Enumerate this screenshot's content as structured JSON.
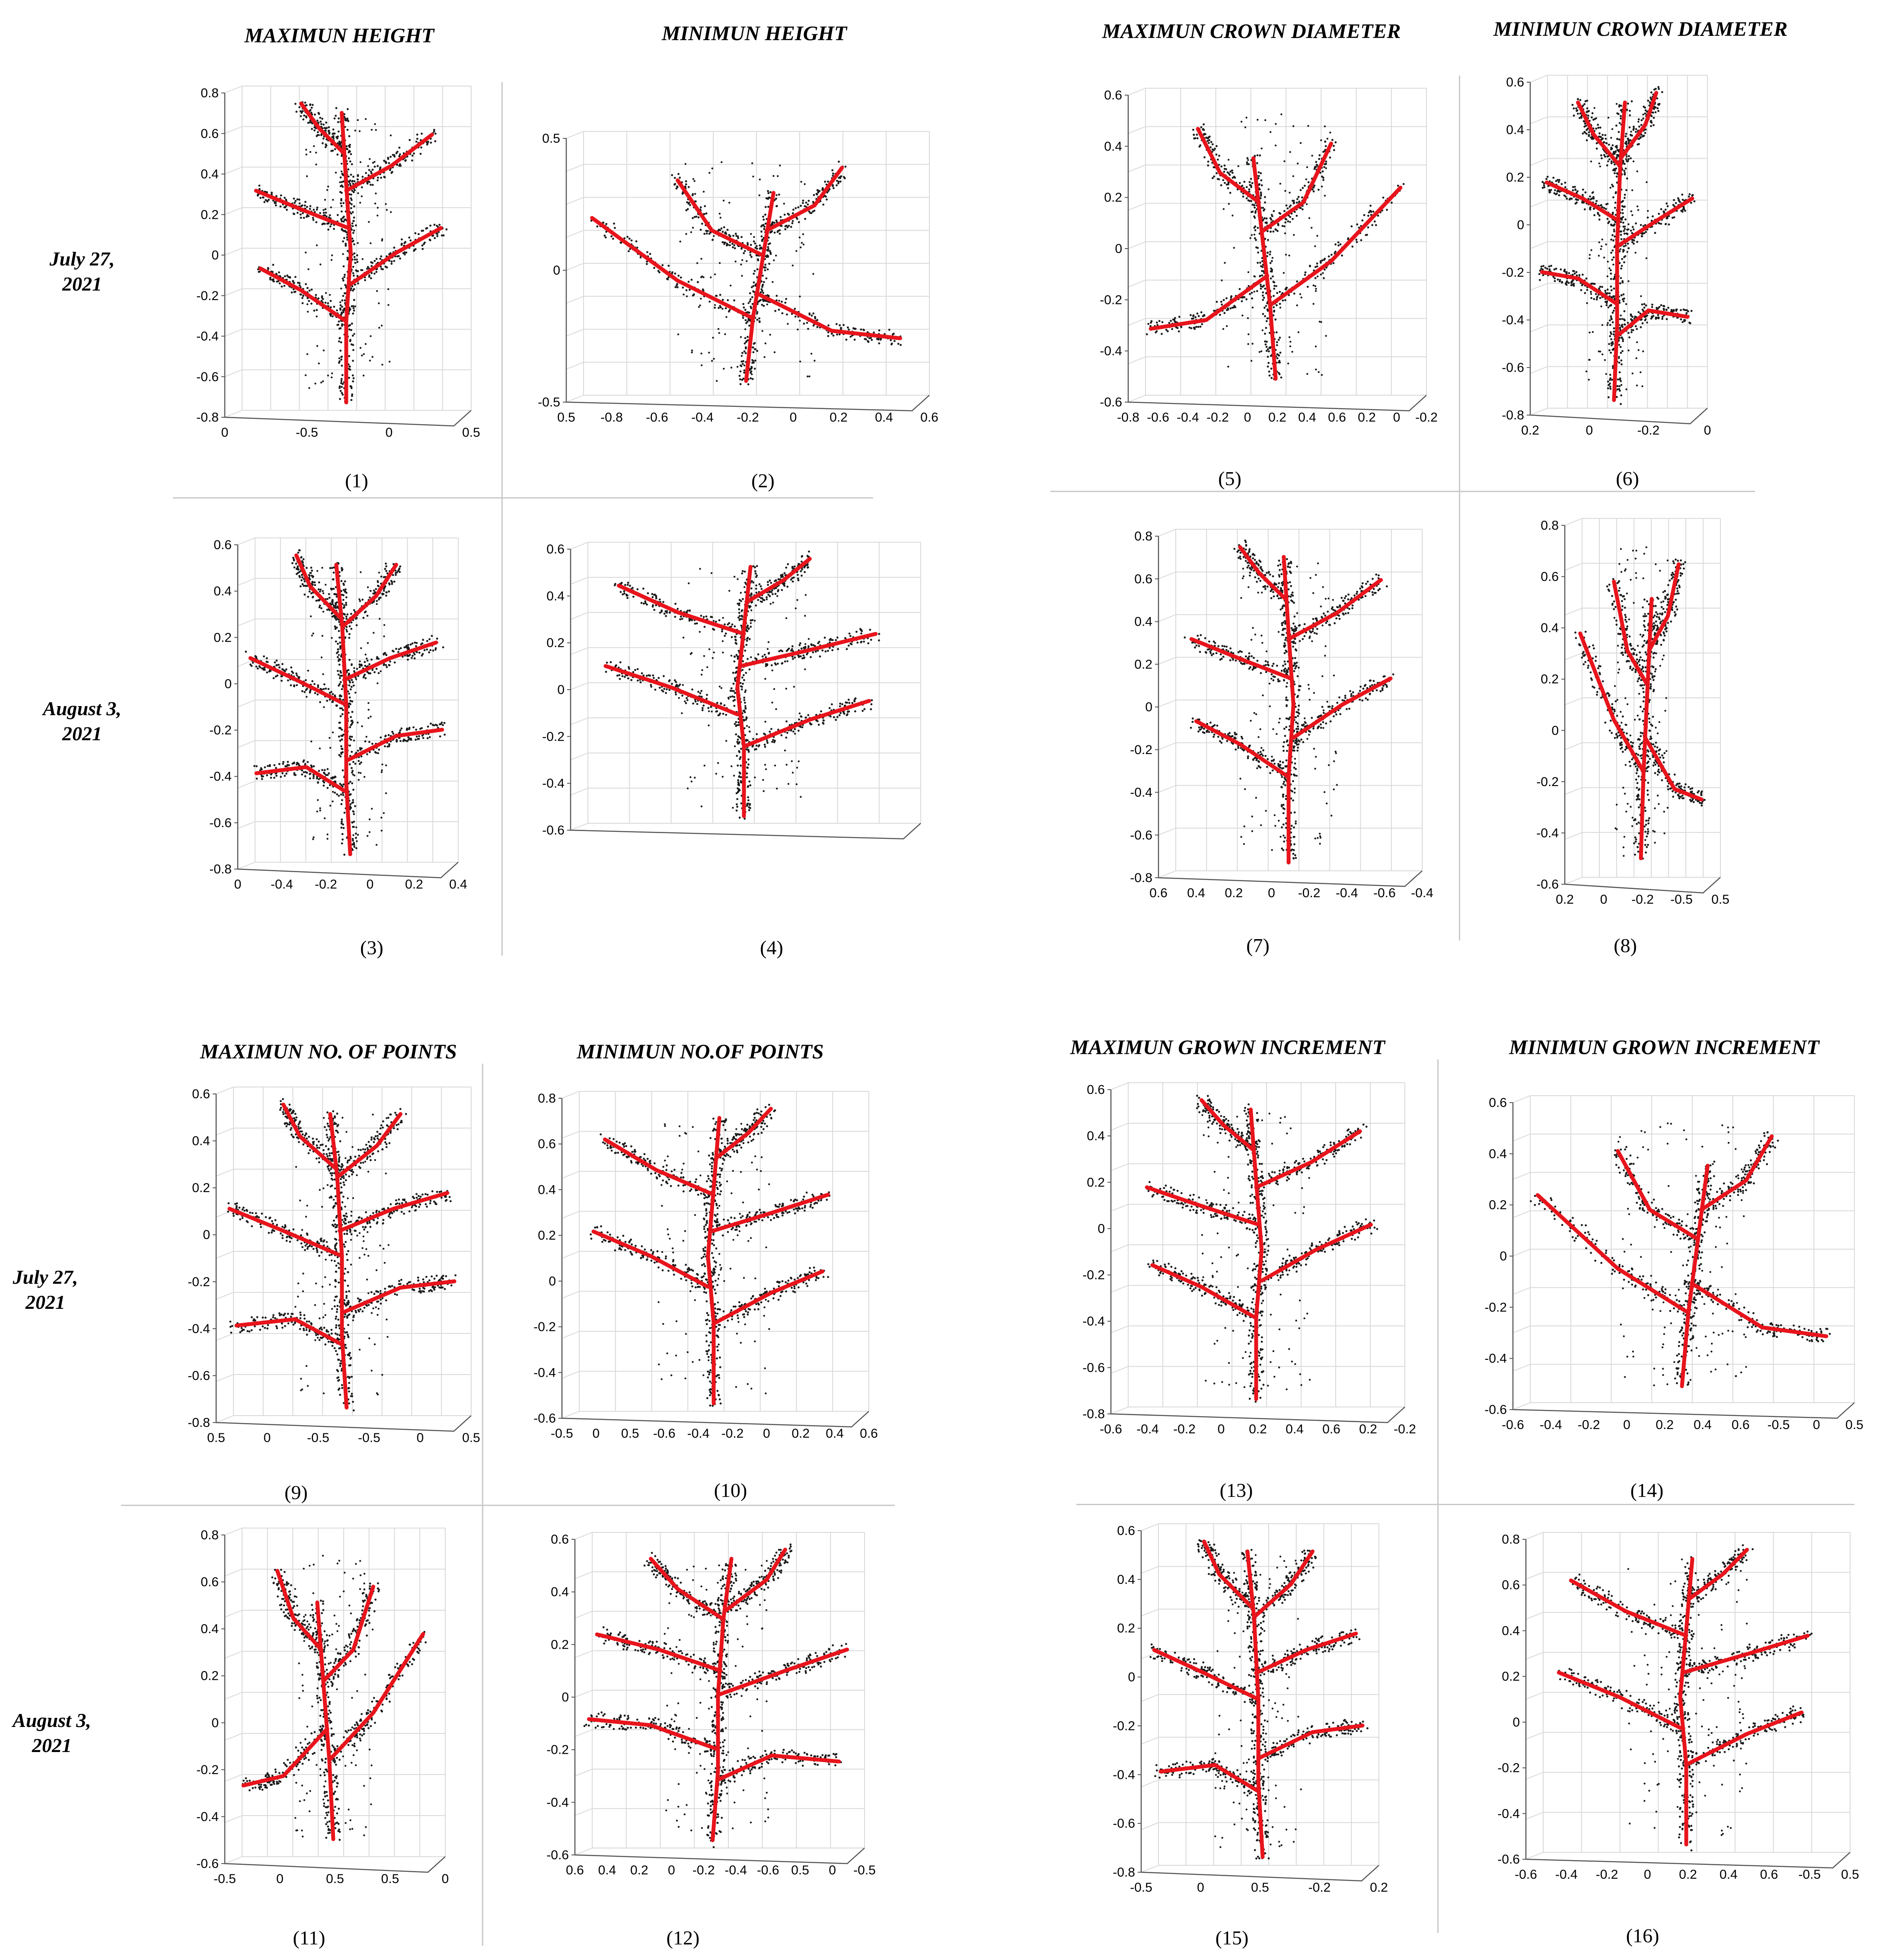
{
  "figure": {
    "headers": [
      "MAXIMUN HEIGHT",
      "MINIMUN HEIGHT",
      "MAXIMUN CROWN DIAMETER",
      "MINIMUN CROWN DIAMETER",
      "MAXIMUN NO. OF POINTS",
      "MINIMUN NO.OF POINTS",
      "MAXIMUN GROWN INCREMENT",
      "MINIMUN GROWN INCREMENT"
    ],
    "row_labels": [
      {
        "line1": "July 27,",
        "line2": "2021"
      },
      {
        "line1": "August 3,",
        "line2": "2021"
      },
      {
        "line1": "July 27,",
        "line2": "2021"
      },
      {
        "line1": "August 3,",
        "line2": "2021"
      }
    ],
    "panels": [
      {
        "caption": "(1)",
        "yticks": [
          "0.8",
          "0.6",
          "0.4",
          "0.2",
          "0",
          "-0.2",
          "-0.4",
          "-0.6",
          "-0.8"
        ],
        "xticks": [
          "0",
          "-0.5",
          "0",
          "0.5"
        ]
      },
      {
        "caption": "(2)",
        "yticks": [
          "0.5",
          "0",
          "-0.5"
        ],
        "xticks": [
          "0.5",
          "-0.8",
          "-0.6",
          "-0.4",
          "-0.2",
          "0",
          "0.2",
          "0.4",
          "0.6"
        ]
      },
      {
        "caption": "(3)",
        "yticks": [
          "0.6",
          "0.4",
          "0.2",
          "0",
          "-0.2",
          "-0.4",
          "-0.6",
          "-0.8"
        ],
        "xticks": [
          "0",
          "-0.4",
          "-0.2",
          "0",
          "0.2",
          "0.4"
        ]
      },
      {
        "caption": "(4)",
        "yticks": [
          "0.6",
          "0.4",
          "0.2",
          "0",
          "-0.2",
          "-0.4",
          "-0.6"
        ],
        "xticks": []
      },
      {
        "caption": "(5)",
        "yticks": [
          "0.6",
          "0.4",
          "0.2",
          "0",
          "-0.2",
          "-0.4",
          "-0.6"
        ],
        "xticks": [
          "-0.8",
          "-0.6",
          "-0.4",
          "-0.2",
          "0",
          "0.2",
          "0.4",
          "0.6",
          "0.2",
          "0",
          "-0.2"
        ]
      },
      {
        "caption": "(6)",
        "yticks": [
          "0.6",
          "0.4",
          "0.2",
          "0",
          "-0.2",
          "-0.4",
          "-0.6",
          "-0.8"
        ],
        "xticks": [
          "0.2",
          "0",
          "-0.2",
          "0"
        ]
      },
      {
        "caption": "(7)",
        "yticks": [
          "0.8",
          "0.6",
          "0.4",
          "0.2",
          "0",
          "-0.2",
          "-0.4",
          "-0.6",
          "-0.8"
        ],
        "xticks": [
          "0.6",
          "0.4",
          "0.2",
          "0",
          "-0.2",
          "-0.4",
          "-0.6",
          "-0.4"
        ]
      },
      {
        "caption": "(8)",
        "yticks": [
          "0.8",
          "0.6",
          "0.4",
          "0.2",
          "0",
          "-0.2",
          "-0.4",
          "-0.6"
        ],
        "xticks": [
          "0.2",
          "0",
          "-0.2",
          "-0.5",
          "0.5"
        ]
      },
      {
        "caption": "(9)",
        "yticks": [
          "0.6",
          "0.4",
          "0.2",
          "0",
          "-0.2",
          "-0.4",
          "-0.6",
          "-0.8"
        ],
        "xticks": [
          "0.5",
          "0",
          "-0.5",
          "-0.5",
          "0",
          "0.5"
        ]
      },
      {
        "caption": "(10)",
        "yticks": [
          "0.8",
          "0.6",
          "0.4",
          "0.2",
          "0",
          "-0.2",
          "-0.4",
          "-0.6"
        ],
        "xticks": [
          "-0.5",
          "0",
          "0.5",
          "-0.6",
          "-0.4",
          "-0.2",
          "0",
          "0.2",
          "0.4",
          "0.6"
        ]
      },
      {
        "caption": "(11)",
        "yticks": [
          "0.8",
          "0.6",
          "0.4",
          "0.2",
          "0",
          "-0.2",
          "-0.4",
          "-0.6"
        ],
        "xticks": [
          "-0.5",
          "0",
          "0.5",
          "0.5",
          "0"
        ]
      },
      {
        "caption": "(12)",
        "yticks": [
          "0.6",
          "0.4",
          "0.2",
          "0",
          "-0.2",
          "-0.4",
          "-0.6"
        ],
        "xticks": [
          "0.6",
          "0.4",
          "0.2",
          "0",
          "-0.2",
          "-0.4",
          "-0.6",
          "0.5",
          "0",
          "-0.5"
        ]
      },
      {
        "caption": "(13)",
        "yticks": [
          "0.6",
          "0.4",
          "0.2",
          "0",
          "-0.2",
          "-0.4",
          "-0.6",
          "-0.8"
        ],
        "xticks": [
          "-0.6",
          "-0.4",
          "-0.2",
          "0",
          "0.2",
          "0.4",
          "0.6",
          "0.2",
          "-0.2"
        ]
      },
      {
        "caption": "(14)",
        "yticks": [
          "0.6",
          "0.4",
          "0.2",
          "0",
          "-0.2",
          "-0.4",
          "-0.6"
        ],
        "xticks": [
          "-0.6",
          "-0.4",
          "-0.2",
          "0",
          "0.2",
          "0.4",
          "0.6",
          "-0.5",
          "0",
          "0.5"
        ]
      },
      {
        "caption": "(15)",
        "yticks": [
          "0.6",
          "0.4",
          "0.2",
          "0",
          "-0.2",
          "-0.4",
          "-0.6",
          "-0.8"
        ],
        "xticks": [
          "-0.5",
          "0",
          "0.5",
          "-0.2",
          "0.2"
        ]
      },
      {
        "caption": "(16)",
        "yticks": [
          "0.8",
          "0.6",
          "0.4",
          "0.2",
          "0",
          "-0.2",
          "-0.4",
          "-0.6"
        ],
        "xticks": [
          "-0.6",
          "-0.4",
          "-0.2",
          "0",
          "0.2",
          "0.4",
          "0.6",
          "-0.5",
          "0.5"
        ]
      }
    ],
    "colors": {
      "skeleton": "#e8141c",
      "points": "#1a1a1a",
      "grid": "#d9d9d9",
      "axis": "#555555"
    }
  }
}
